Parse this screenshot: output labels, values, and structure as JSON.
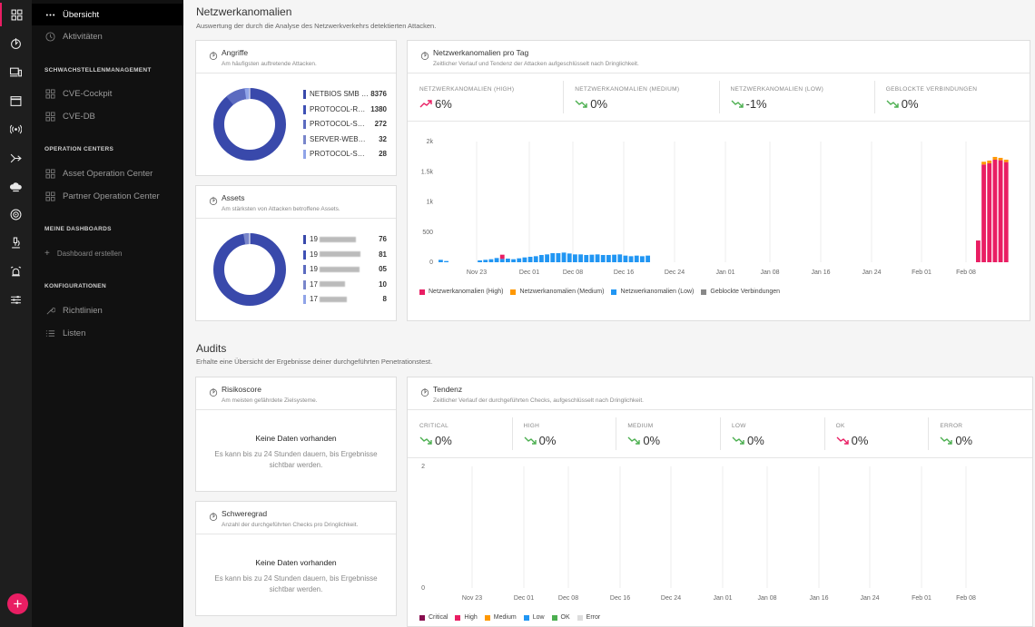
{
  "rail": {
    "icons": [
      "dashboard-icon",
      "radar-bolt-icon",
      "devices-icon",
      "browser-window-icon",
      "broadcast-icon",
      "network-arrow-icon",
      "cloud-icon",
      "target-icon",
      "microscope-icon",
      "alarm-icon",
      "sliders-icon"
    ],
    "add_label": "+"
  },
  "nav": {
    "items": [
      {
        "label": "Übersicht",
        "icon": "dots-icon",
        "active": true
      },
      {
        "label": "Aktivitäten",
        "icon": "clock-icon",
        "active": false
      }
    ],
    "sections": [
      {
        "title": "SCHWACHSTELLENMANAGEMENT",
        "items": [
          "CVE-Cockpit",
          "CVE-DB"
        ]
      },
      {
        "title": "OPERATION CENTERS",
        "items": [
          "Asset Operation Center",
          "Partner Operation Center"
        ]
      },
      {
        "title": "MEINE DASHBOARDS",
        "items": [
          "Dashboard erstellen"
        ]
      },
      {
        "title": "KONFIGURATIONEN",
        "items": [
          "Richtlinien",
          "Listen"
        ]
      }
    ]
  },
  "network": {
    "title": "Netzwerkanomalien",
    "subtitle": "Auswertung der durch die Analyse des Netzwerkverkehrs detektierten Attacken.",
    "attacks_card": {
      "title": "Angriffe",
      "subtitle": "Am häufigsten auftretende Attacken.",
      "items": [
        {
          "label": "NETBIOS SMB …",
          "value": "8376",
          "color": "#3949ab"
        },
        {
          "label": "PROTOCOL-RP…",
          "value": "1380",
          "color": "#3f51b5"
        },
        {
          "label": "PROTOCOL-SSL…",
          "value": "272",
          "color": "#5c6bc0"
        },
        {
          "label": "SERVER-WEBAPP…",
          "value": "32",
          "color": "#7986cb"
        },
        {
          "label": "PROTOCOL-SSL …",
          "value": "28",
          "color": "#90a4e8"
        }
      ]
    },
    "assets_card": {
      "title": "Assets",
      "subtitle": "Am stärksten von Attacken betroffene Assets.",
      "items": [
        {
          "label": "19",
          "value": "76",
          "color": "#3949ab"
        },
        {
          "label": "19",
          "value": "81",
          "color": "#3f51b5"
        },
        {
          "label": "19",
          "value": "05",
          "color": "#5c6bc0"
        },
        {
          "label": "17",
          "value": "10",
          "color": "#7986cb"
        },
        {
          "label": "17",
          "value": "8",
          "color": "#90a4e8"
        }
      ]
    },
    "daily_card": {
      "title": "Netzwerkanomalien pro Tag",
      "subtitle": "Zeitlicher Verlauf und Tendenz der Attacken aufgeschlüsselt nach Dringlichkeit.",
      "stats": [
        {
          "label": "NETZWERKANOMALIEN (HIGH)",
          "value": "6%",
          "trend": "up"
        },
        {
          "label": "NETZWERKANOMALIEN (MEDIUM)",
          "value": "0%",
          "trend": "down"
        },
        {
          "label": "NETZWERKANOMALIEN (LOW)",
          "value": "-1%",
          "trend": "down"
        },
        {
          "label": "GEBLOCKTE VERBINDUNGEN",
          "value": "0%",
          "trend": "down"
        }
      ]
    }
  },
  "audits": {
    "title": "Audits",
    "subtitle": "Erhalte eine Übersicht der Ergebnisse deiner durchgeführten Penetrationstest.",
    "risk_card": {
      "title": "Risikoscore",
      "subtitle": "Am meisten gefährdete Zielsysteme.",
      "nodata_title": "Keine Daten vorhanden",
      "nodata_text": "Es kann bis zu 24 Stunden dauern, bis Ergebnisse sichtbar werden."
    },
    "severity_card": {
      "title": "Schweregrad",
      "subtitle": "Anzahl der durchgeführten Checks pro Dringlichkeit.",
      "nodata_title": "Keine Daten vorhanden",
      "nodata_text": "Es kann bis zu 24 Stunden dauern, bis Ergebnisse sichtbar werden."
    },
    "trend_card": {
      "title": "Tendenz",
      "subtitle": "Zeitlicher Verlauf der durchgeführten Checks, aufgeschlüsselt nach Dringlichkeit.",
      "stats": [
        {
          "label": "CRITICAL",
          "value": "0%",
          "trend": "down"
        },
        {
          "label": "HIGH",
          "value": "0%",
          "trend": "down"
        },
        {
          "label": "MEDIUM",
          "value": "0%",
          "trend": "down"
        },
        {
          "label": "LOW",
          "value": "0%",
          "trend": "down"
        },
        {
          "label": "OK",
          "value": "0%",
          "trend": "down-red"
        },
        {
          "label": "ERROR",
          "value": "0%",
          "trend": "down"
        }
      ]
    }
  },
  "colors": {
    "high": "#e91e63",
    "medium": "#ff9800",
    "low": "#2196f3",
    "blocked": "#888888",
    "critical": "#880e4f",
    "ok": "#4caf50",
    "error": "#dddddd",
    "up": "#e91e63",
    "down": "#4caf50"
  },
  "chart_data": [
    {
      "type": "bar",
      "stacked": true,
      "yticks": [
        "0",
        "500",
        "1k",
        "1.5k",
        "2k"
      ],
      "ylim": [
        0,
        2000
      ],
      "xticks": [
        "Nov 23",
        "Dec 01",
        "Dec 08",
        "Dec 16",
        "Dec 24",
        "Jan 01",
        "Jan 08",
        "Jan 16",
        "Jan 24",
        "Feb 01",
        "Feb 08"
      ],
      "legend": [
        "Netzwerkanomalien (High)",
        "Netzwerkanomalien (Medium)",
        "Netzwerkanomalien (Low)",
        "Geblockte Verbindungen"
      ],
      "series": [
        {
          "name": "Netzwerkanomalien (High)",
          "values": [
            0,
            0,
            0,
            0,
            0,
            0,
            0,
            0,
            0,
            0,
            0,
            70,
            0,
            0,
            0,
            0,
            0,
            0,
            0,
            0,
            0,
            0,
            0,
            0,
            0,
            0,
            0,
            0,
            0,
            0,
            0,
            0,
            0,
            0,
            0,
            0,
            0,
            0,
            0,
            0,
            0,
            0,
            0,
            0,
            0,
            0,
            0,
            0,
            0,
            0,
            0,
            0,
            0,
            0,
            0,
            0,
            0,
            0,
            0,
            0,
            0,
            0,
            0,
            0,
            0,
            0,
            0,
            0,
            0,
            0,
            0,
            0,
            0,
            0,
            0,
            0,
            0,
            0,
            0,
            0,
            0,
            0,
            0,
            0,
            0,
            0,
            0,
            0,
            0,
            0,
            0,
            0,
            0,
            0,
            0,
            0,
            360,
            1620,
            1640,
            1700,
            1690,
            1660
          ]
        },
        {
          "name": "Netzwerkanomalien (Medium)",
          "values": [
            0,
            0,
            0,
            0,
            0,
            0,
            0,
            0,
            0,
            0,
            0,
            0,
            0,
            0,
            0,
            0,
            0,
            0,
            0,
            0,
            0,
            0,
            0,
            0,
            0,
            0,
            0,
            0,
            0,
            0,
            0,
            0,
            0,
            0,
            0,
            0,
            0,
            0,
            0,
            0,
            0,
            0,
            0,
            0,
            0,
            0,
            0,
            0,
            0,
            0,
            0,
            0,
            0,
            0,
            0,
            0,
            0,
            0,
            0,
            0,
            0,
            0,
            0,
            0,
            0,
            0,
            0,
            0,
            0,
            0,
            0,
            0,
            0,
            0,
            0,
            0,
            0,
            0,
            0,
            0,
            0,
            0,
            0,
            0,
            0,
            0,
            0,
            0,
            0,
            0,
            0,
            0,
            0,
            0,
            0,
            0,
            0,
            45,
            45,
            45,
            40,
            40
          ]
        },
        {
          "name": "Netzwerkanomalien (Low)",
          "values": [
            40,
            20,
            0,
            0,
            0,
            0,
            0,
            30,
            40,
            50,
            70,
            55,
            60,
            50,
            65,
            80,
            90,
            100,
            120,
            130,
            150,
            150,
            160,
            145,
            130,
            130,
            120,
            125,
            130,
            120,
            120,
            125,
            130,
            110,
            100,
            110,
            100,
            110,
            0,
            0,
            0,
            0,
            0,
            0,
            0,
            0,
            0,
            0,
            0,
            0,
            0,
            0,
            0,
            0,
            0,
            0,
            0,
            0,
            0,
            0,
            0,
            0,
            0,
            0,
            0,
            0,
            0,
            0,
            0,
            0,
            0,
            0,
            0,
            0,
            0,
            0,
            0,
            0,
            0,
            0,
            0,
            0,
            0,
            0,
            0,
            0,
            0,
            0,
            0,
            0,
            0,
            0,
            0,
            0,
            0,
            0,
            0,
            0,
            0,
            0,
            0,
            0
          ]
        },
        {
          "name": "Geblockte Verbindungen",
          "values": []
        }
      ]
    },
    {
      "type": "bar",
      "yticks": [
        "0",
        "2"
      ],
      "ylim": [
        0,
        2
      ],
      "xticks": [
        "Nov 23",
        "Dec 01",
        "Dec 08",
        "Dec 16",
        "Dec 24",
        "Jan 01",
        "Jan 08",
        "Jan 16",
        "Jan 24",
        "Feb 01",
        "Feb 08"
      ],
      "legend": [
        "Critical",
        "High",
        "Medium",
        "Low",
        "OK",
        "Error"
      ],
      "series": []
    }
  ]
}
